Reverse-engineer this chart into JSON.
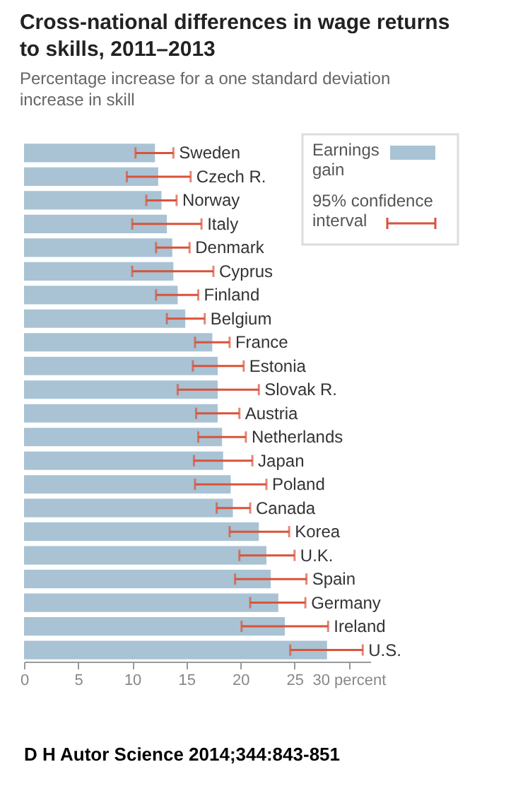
{
  "chart_data": {
    "type": "bar",
    "orientation": "horizontal",
    "title": "Cross-national differences in wage returns to skills, 2011–2013",
    "subtitle": "Percentage increase for a one standard deviation increase in skill",
    "categories": [
      "Sweden",
      "Czech R.",
      "Norway",
      "Italy",
      "Denmark",
      "Cyprus",
      "Finland",
      "Belgium",
      "France",
      "Estonia",
      "Slovak R.",
      "Austria",
      "Netherlands",
      "Japan",
      "Poland",
      "Canada",
      "Korea",
      "U.K.",
      "Spain",
      "Germany",
      "Ireland",
      "U.S."
    ],
    "series": [
      {
        "name": "Earnings gain",
        "color": "#a9c3d4",
        "values": [
          12.1,
          12.4,
          12.7,
          13.2,
          13.7,
          13.8,
          14.2,
          14.9,
          17.4,
          17.9,
          17.9,
          17.9,
          18.3,
          18.4,
          19.1,
          19.3,
          21.7,
          22.4,
          22.8,
          23.5,
          24.1,
          28.0
        ],
        "errors": [
          [
            10.3,
            13.8
          ],
          [
            9.5,
            15.4
          ],
          [
            11.3,
            14.1
          ],
          [
            10.0,
            16.4
          ],
          [
            12.2,
            15.3
          ],
          [
            10.0,
            17.5
          ],
          [
            12.2,
            16.1
          ],
          [
            13.2,
            16.7
          ],
          [
            15.8,
            19.0
          ],
          [
            15.6,
            20.3
          ],
          [
            14.2,
            21.7
          ],
          [
            15.9,
            19.9
          ],
          [
            16.1,
            20.5
          ],
          [
            15.7,
            21.1
          ],
          [
            15.8,
            22.4
          ],
          [
            17.8,
            20.9
          ],
          [
            19.0,
            24.5
          ],
          [
            19.9,
            25.0
          ],
          [
            19.5,
            26.1
          ],
          [
            20.9,
            26.0
          ],
          [
            20.1,
            28.1
          ],
          [
            24.6,
            31.3
          ]
        ]
      }
    ],
    "xlim": [
      0,
      32
    ],
    "xticks": [
      0,
      5,
      10,
      15,
      20,
      25,
      {
        "value": 30,
        "label": "30 percent"
      }
    ],
    "legend": "top right",
    "grid": false,
    "tick_labels": "x",
    "annotations": [
      "95% confidence interval",
      "D H Autor Science 2014;344:843-851"
    ]
  }
}
